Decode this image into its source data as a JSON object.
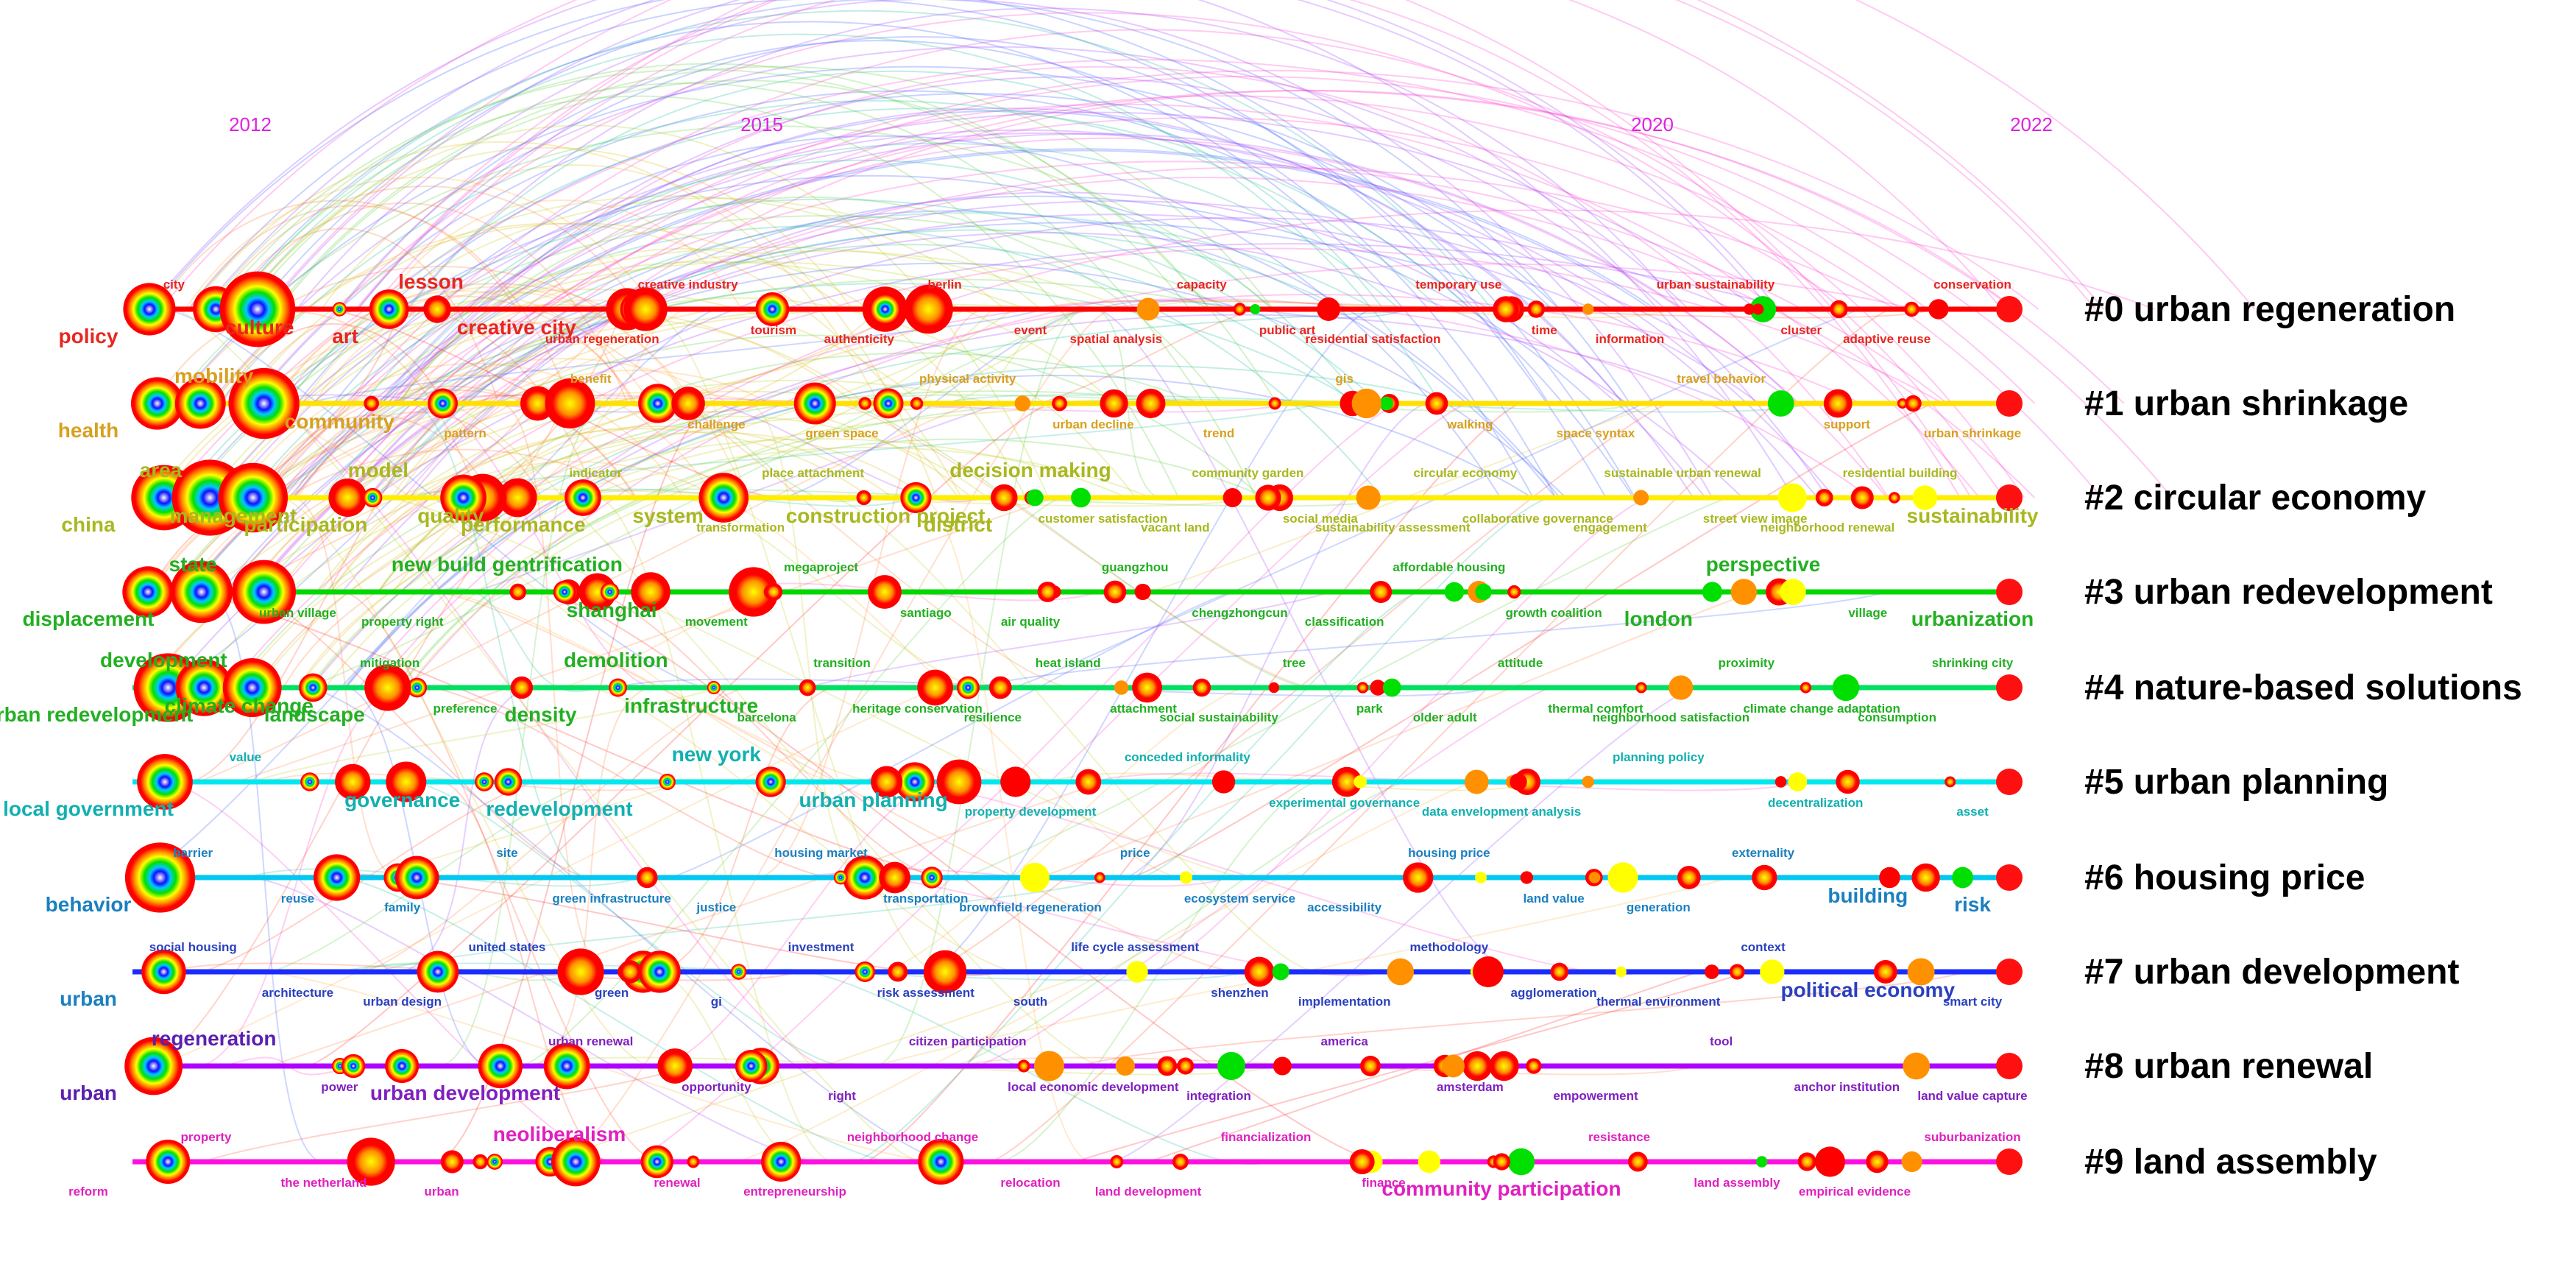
{
  "years": [
    "2012",
    "2015",
    "2020",
    "2022"
  ],
  "year_color": "#e020e0",
  "clusters": [
    {
      "label": "#0 urban regeneration",
      "color": "#ff0000"
    },
    {
      "label": "#1 urban shrinkage",
      "color": "#ffd800"
    },
    {
      "label": "#2 circular economy",
      "color": "#ffe000"
    },
    {
      "label": "#3 urban redevelopment",
      "color": "#00cc00"
    },
    {
      "label": "#4 nature-based solutions",
      "color": "#00dd44"
    },
    {
      "label": "#5 urban planning",
      "color": "#00e0e0"
    },
    {
      "label": "#6 housing price",
      "color": "#00d0ee"
    },
    {
      "label": "#7 urban development",
      "color": "#1a35ff"
    },
    {
      "label": "#8 urban renewal",
      "color": "#b000ff"
    },
    {
      "label": "#9 land assembly",
      "color": "#ff10d0"
    }
  ],
  "keywords": [
    {
      "t": "policy",
      "c": "#e8261f",
      "big": true
    },
    {
      "t": "city",
      "c": "#e8261f"
    },
    {
      "t": "culture",
      "c": "#e8261f",
      "big": true
    },
    {
      "t": "art",
      "c": "#e8261f",
      "big": true
    },
    {
      "t": "lesson",
      "c": "#e8261f",
      "big": true
    },
    {
      "t": "creative city",
      "c": "#e8261f",
      "big": true
    },
    {
      "t": "urban regeneration",
      "c": "#e8261f"
    },
    {
      "t": "creative industry",
      "c": "#e8261f"
    },
    {
      "t": "tourism",
      "c": "#e8261f"
    },
    {
      "t": "authenticity",
      "c": "#e8261f"
    },
    {
      "t": "berlin",
      "c": "#e8261f"
    },
    {
      "t": "event",
      "c": "#e8261f"
    },
    {
      "t": "spatial analysis",
      "c": "#e8261f"
    },
    {
      "t": "capacity",
      "c": "#e8261f"
    },
    {
      "t": "public art",
      "c": "#e8261f"
    },
    {
      "t": "residential satisfaction",
      "c": "#e8261f"
    },
    {
      "t": "temporary use",
      "c": "#e8261f"
    },
    {
      "t": "time",
      "c": "#e8261f"
    },
    {
      "t": "information",
      "c": "#e8261f"
    },
    {
      "t": "urban sustainability",
      "c": "#e8261f"
    },
    {
      "t": "cluster",
      "c": "#e8261f"
    },
    {
      "t": "adaptive reuse",
      "c": "#e8261f"
    },
    {
      "t": "conservation",
      "c": "#e8261f"
    },
    {
      "t": "health",
      "c": "#d8a020",
      "big": true
    },
    {
      "t": "mobility",
      "c": "#d8a020",
      "big": true
    },
    {
      "t": "community",
      "c": "#d8a020",
      "big": true
    },
    {
      "t": "pattern",
      "c": "#d8a020"
    },
    {
      "t": "benefit",
      "c": "#d8a020"
    },
    {
      "t": "challenge",
      "c": "#d8a020"
    },
    {
      "t": "green space",
      "c": "#d8a020"
    },
    {
      "t": "physical activity",
      "c": "#d8a020"
    },
    {
      "t": "urban decline",
      "c": "#d8a020"
    },
    {
      "t": "trend",
      "c": "#d8a020"
    },
    {
      "t": "gis",
      "c": "#d8a020"
    },
    {
      "t": "walking",
      "c": "#d8a020"
    },
    {
      "t": "space syntax",
      "c": "#d8a020"
    },
    {
      "t": "travel behavior",
      "c": "#d8a020"
    },
    {
      "t": "support",
      "c": "#d8a020"
    },
    {
      "t": "urban shrinkage",
      "c": "#d8a020"
    },
    {
      "t": "china",
      "c": "#a8b820",
      "big": true
    },
    {
      "t": "area",
      "c": "#a8b820",
      "big": true
    },
    {
      "t": "management",
      "c": "#a8b820",
      "big": true
    },
    {
      "t": "participation",
      "c": "#a8b820",
      "big": true
    },
    {
      "t": "model",
      "c": "#a8b820",
      "big": true
    },
    {
      "t": "quality",
      "c": "#a8b820",
      "big": true
    },
    {
      "t": "performance",
      "c": "#a8b820",
      "big": true
    },
    {
      "t": "indicator",
      "c": "#a8b820"
    },
    {
      "t": "system",
      "c": "#a8b820",
      "big": true
    },
    {
      "t": "transformation",
      "c": "#a8b820"
    },
    {
      "t": "place attachment",
      "c": "#a8b820"
    },
    {
      "t": "construction project",
      "c": "#a8b820",
      "big": true
    },
    {
      "t": "district",
      "c": "#a8b820",
      "big": true
    },
    {
      "t": "decision making",
      "c": "#a8b820",
      "big": true
    },
    {
      "t": "customer satisfaction",
      "c": "#a8b820"
    },
    {
      "t": "vacant land",
      "c": "#a8b820"
    },
    {
      "t": "community garden",
      "c": "#a8b820"
    },
    {
      "t": "social media",
      "c": "#a8b820"
    },
    {
      "t": "sustainability assessment",
      "c": "#a8b820"
    },
    {
      "t": "circular economy",
      "c": "#a8b820"
    },
    {
      "t": "collaborative governance",
      "c": "#a8b820"
    },
    {
      "t": "engagement",
      "c": "#a8b820"
    },
    {
      "t": "sustainable urban renewal",
      "c": "#a8b820"
    },
    {
      "t": "street view image",
      "c": "#a8b820"
    },
    {
      "t": "neighborhood renewal",
      "c": "#a8b820"
    },
    {
      "t": "residential building",
      "c": "#a8b820"
    },
    {
      "t": "sustainability",
      "c": "#a8b820",
      "big": true
    },
    {
      "t": "displacement",
      "c": "#22b022",
      "big": true
    },
    {
      "t": "state",
      "c": "#22b022",
      "big": true
    },
    {
      "t": "urban village",
      "c": "#22b022"
    },
    {
      "t": "property right",
      "c": "#22b022"
    },
    {
      "t": "new build gentrification",
      "c": "#22b022",
      "big": true
    },
    {
      "t": "shanghai",
      "c": "#22b022",
      "big": true
    },
    {
      "t": "movement",
      "c": "#22b022"
    },
    {
      "t": "megaproject",
      "c": "#22b022"
    },
    {
      "t": "santiago",
      "c": "#22b022"
    },
    {
      "t": "air quality",
      "c": "#22b022"
    },
    {
      "t": "guangzhou",
      "c": "#22b022"
    },
    {
      "t": "chengzhongcun",
      "c": "#22b022"
    },
    {
      "t": "classification",
      "c": "#22b022"
    },
    {
      "t": "affordable housing",
      "c": "#22b022"
    },
    {
      "t": "growth coalition",
      "c": "#22b022"
    },
    {
      "t": "london",
      "c": "#22b022",
      "big": true
    },
    {
      "t": "perspective",
      "c": "#22b022",
      "big": true
    },
    {
      "t": "village",
      "c": "#22b022"
    },
    {
      "t": "urbanization",
      "c": "#22b022",
      "big": true
    },
    {
      "t": "urban redevelopment",
      "c": "#22b022",
      "big": true
    },
    {
      "t": "development",
      "c": "#22b022",
      "big": true
    },
    {
      "t": "climate change",
      "c": "#22b022",
      "big": true
    },
    {
      "t": "landscape",
      "c": "#22b022",
      "big": true
    },
    {
      "t": "mitigation",
      "c": "#22b022"
    },
    {
      "t": "preference",
      "c": "#22b022"
    },
    {
      "t": "density",
      "c": "#22b022",
      "big": true
    },
    {
      "t": "demolition",
      "c": "#22b022",
      "big": true
    },
    {
      "t": "infrastructure",
      "c": "#22b022",
      "big": true
    },
    {
      "t": "barcelona",
      "c": "#22b022"
    },
    {
      "t": "transition",
      "c": "#22b022"
    },
    {
      "t": "heritage conservation",
      "c": "#22b022"
    },
    {
      "t": "resilience",
      "c": "#22b022"
    },
    {
      "t": "heat island",
      "c": "#22b022"
    },
    {
      "t": "attachment",
      "c": "#22b022"
    },
    {
      "t": "social sustainability",
      "c": "#22b022"
    },
    {
      "t": "tree",
      "c": "#22b022"
    },
    {
      "t": "park",
      "c": "#22b022"
    },
    {
      "t": "older adult",
      "c": "#22b022"
    },
    {
      "t": "attitude",
      "c": "#22b022"
    },
    {
      "t": "thermal comfort",
      "c": "#22b022"
    },
    {
      "t": "neighborhood satisfaction",
      "c": "#22b022"
    },
    {
      "t": "proximity",
      "c": "#22b022"
    },
    {
      "t": "climate change adaptation",
      "c": "#22b022"
    },
    {
      "t": "consumption",
      "c": "#22b022"
    },
    {
      "t": "shrinking city",
      "c": "#22b022"
    },
    {
      "t": "local government",
      "c": "#12b0b0",
      "big": true
    },
    {
      "t": "value",
      "c": "#12b0b0"
    },
    {
      "t": "governance",
      "c": "#12b0b0",
      "big": true
    },
    {
      "t": "redevelopment",
      "c": "#12b0b0",
      "big": true
    },
    {
      "t": "new york",
      "c": "#12b0b0",
      "big": true
    },
    {
      "t": "urban planning",
      "c": "#12b0b0",
      "big": true
    },
    {
      "t": "property development",
      "c": "#12b0b0"
    },
    {
      "t": "conceded informality",
      "c": "#12b0b0"
    },
    {
      "t": "experimental governance",
      "c": "#12b0b0"
    },
    {
      "t": "data envelopment analysis",
      "c": "#12b0b0"
    },
    {
      "t": "planning policy",
      "c": "#12b0b0"
    },
    {
      "t": "decentralization",
      "c": "#12b0b0"
    },
    {
      "t": "asset",
      "c": "#12b0b0"
    },
    {
      "t": "behavior",
      "c": "#1a80c0",
      "big": true
    },
    {
      "t": "barrier",
      "c": "#1a80c0"
    },
    {
      "t": "reuse",
      "c": "#1a80c0"
    },
    {
      "t": "family",
      "c": "#1a80c0"
    },
    {
      "t": "site",
      "c": "#1a80c0"
    },
    {
      "t": "green infrastructure",
      "c": "#1a80c0"
    },
    {
      "t": "justice",
      "c": "#1a80c0"
    },
    {
      "t": "housing market",
      "c": "#1a80c0"
    },
    {
      "t": "transportation",
      "c": "#1a80c0"
    },
    {
      "t": "brownfield regeneration",
      "c": "#1a80c0"
    },
    {
      "t": "price",
      "c": "#1a80c0"
    },
    {
      "t": "ecosystem service",
      "c": "#1a80c0"
    },
    {
      "t": "accessibility",
      "c": "#1a80c0"
    },
    {
      "t": "housing price",
      "c": "#1a80c0"
    },
    {
      "t": "land value",
      "c": "#1a80c0"
    },
    {
      "t": "generation",
      "c": "#1a80c0"
    },
    {
      "t": "externality",
      "c": "#1a80c0"
    },
    {
      "t": "building",
      "c": "#1a80c0",
      "big": true
    },
    {
      "t": "risk",
      "c": "#1a80c0",
      "big": true
    },
    {
      "t": "urban",
      "c": "#1a80c0",
      "big": true
    },
    {
      "t": "social housing",
      "c": "#2a40c0"
    },
    {
      "t": "architecture",
      "c": "#2a40c0"
    },
    {
      "t": "urban design",
      "c": "#2a40c0"
    },
    {
      "t": "united states",
      "c": "#2a40c0"
    },
    {
      "t": "green",
      "c": "#2a40c0"
    },
    {
      "t": "gi",
      "c": "#2a40c0"
    },
    {
      "t": "investment",
      "c": "#2a40c0"
    },
    {
      "t": "risk assessment",
      "c": "#2a40c0"
    },
    {
      "t": "south",
      "c": "#2a40c0"
    },
    {
      "t": "life cycle assessment",
      "c": "#2a40c0"
    },
    {
      "t": "shenzhen",
      "c": "#2a40c0"
    },
    {
      "t": "implementation",
      "c": "#2a40c0"
    },
    {
      "t": "methodology",
      "c": "#2a40c0"
    },
    {
      "t": "agglomeration",
      "c": "#2a40c0"
    },
    {
      "t": "thermal environment",
      "c": "#2a40c0"
    },
    {
      "t": "context",
      "c": "#2a40c0"
    },
    {
      "t": "political economy",
      "c": "#2a40c0",
      "big": true
    },
    {
      "t": "smart city",
      "c": "#2a40c0"
    },
    {
      "t": "urban",
      "c": "#5a20b0",
      "big": true
    },
    {
      "t": "regeneration",
      "c": "#5a20b0",
      "big": true
    },
    {
      "t": "power",
      "c": "#8020c0"
    },
    {
      "t": "urban development",
      "c": "#8020c0",
      "big": true
    },
    {
      "t": "urban renewal",
      "c": "#8020c0"
    },
    {
      "t": "opportunity",
      "c": "#8020c0"
    },
    {
      "t": "right",
      "c": "#8020c0"
    },
    {
      "t": "citizen participation",
      "c": "#8020c0"
    },
    {
      "t": "local economic development",
      "c": "#8020c0"
    },
    {
      "t": "integration",
      "c": "#8020c0"
    },
    {
      "t": "america",
      "c": "#8020c0"
    },
    {
      "t": "amsterdam",
      "c": "#8020c0"
    },
    {
      "t": "empowerment",
      "c": "#8020c0"
    },
    {
      "t": "tool",
      "c": "#8020c0"
    },
    {
      "t": "anchor institution",
      "c": "#8020c0"
    },
    {
      "t": "land value capture",
      "c": "#8020c0"
    },
    {
      "t": "reform",
      "c": "#e020c0"
    },
    {
      "t": "property",
      "c": "#e020c0"
    },
    {
      "t": "the netherland",
      "c": "#e020c0"
    },
    {
      "t": "urban",
      "c": "#e020c0"
    },
    {
      "t": "neoliberalism",
      "c": "#e020c0",
      "big": true
    },
    {
      "t": "renewal",
      "c": "#e020c0"
    },
    {
      "t": "entrepreneurship",
      "c": "#e020c0"
    },
    {
      "t": "neighborhood change",
      "c": "#e020c0"
    },
    {
      "t": "relocation",
      "c": "#e020c0"
    },
    {
      "t": "land development",
      "c": "#e020c0"
    },
    {
      "t": "financialization",
      "c": "#e020c0"
    },
    {
      "t": "finance",
      "c": "#e020c0"
    },
    {
      "t": "community participation",
      "c": "#e020c0",
      "big": true
    },
    {
      "t": "resistance",
      "c": "#e020c0"
    },
    {
      "t": "land assembly",
      "c": "#e020c0"
    },
    {
      "t": "empirical evidence",
      "c": "#e020c0"
    },
    {
      "t": "suburbanization",
      "c": "#e020c0"
    }
  ]
}
